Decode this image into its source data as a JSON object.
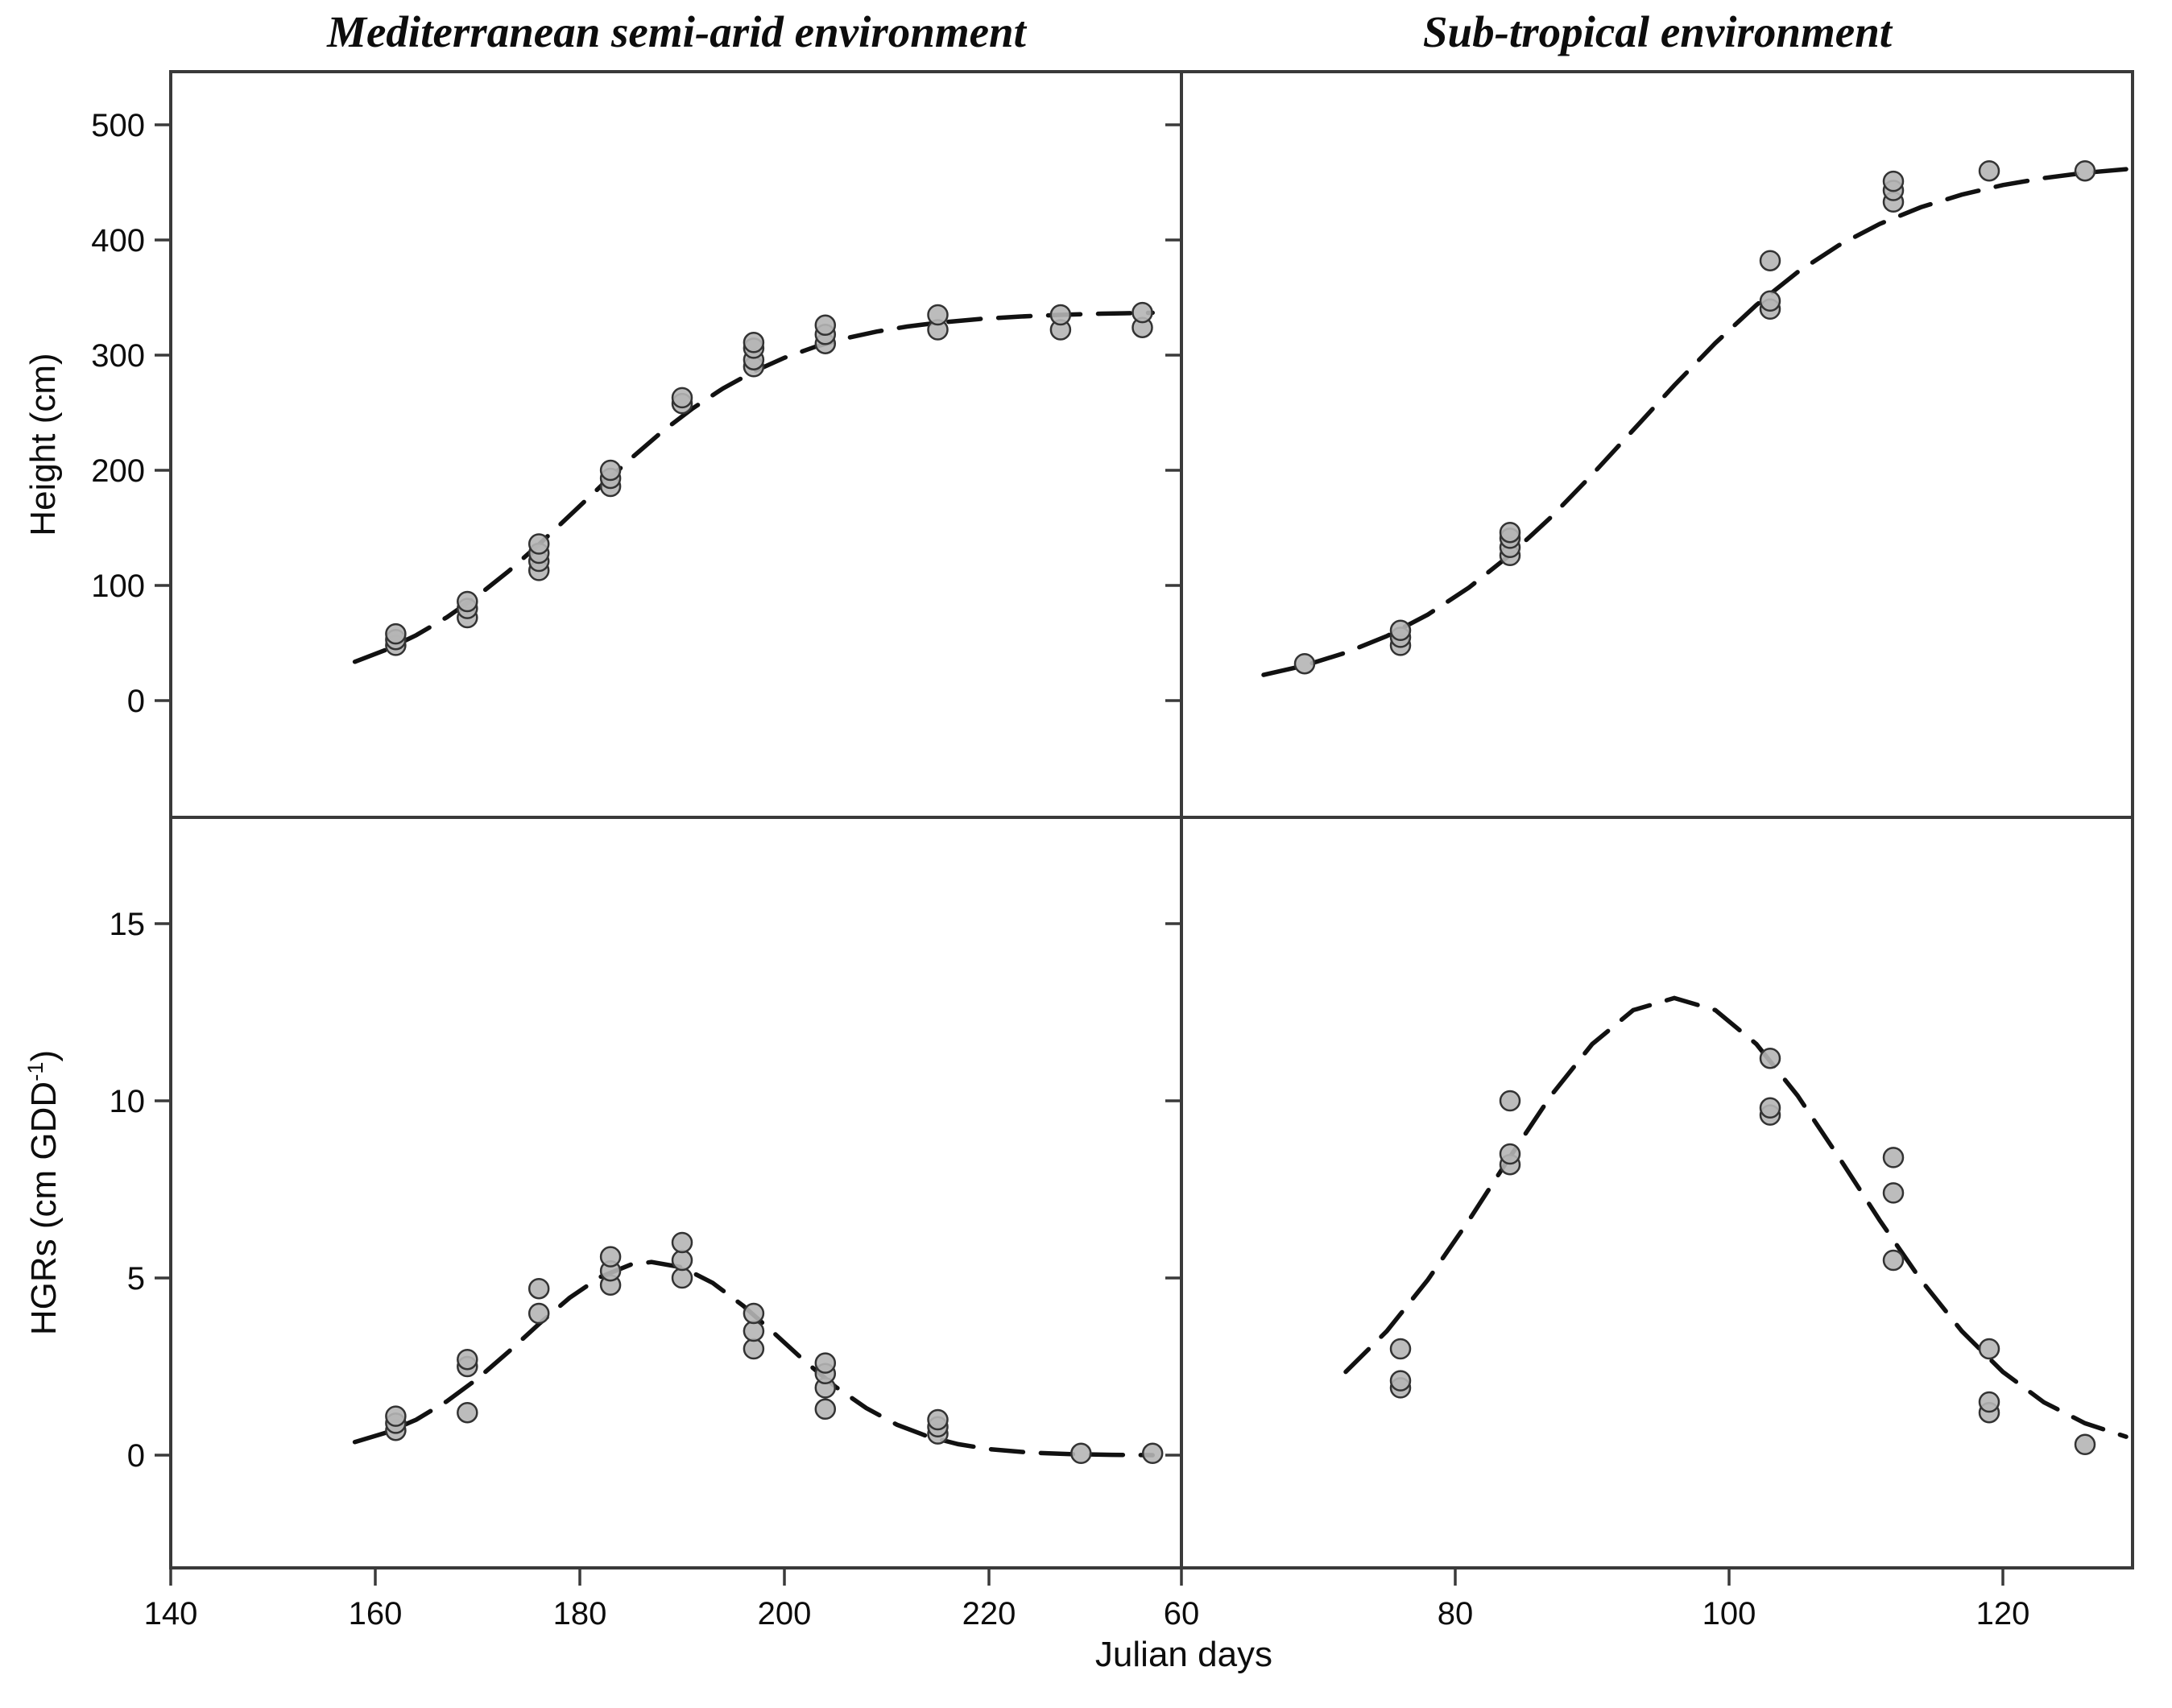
{
  "figure": {
    "left_title": "Mediterranean semi-arid environment",
    "right_title": "Sub-tropical environment",
    "x_axis_label": "Julian days",
    "y_axis_label_top": "Height (cm)",
    "y_axis_label_bottom_main": "HGRs (cm GDD",
    "y_axis_label_bottom_sup": "-1",
    "y_axis_label_bottom_close": ")",
    "point_fill_color": "#b5b5b5",
    "point_stroke_color": "#333333",
    "curve_color": "#111111",
    "axis_color": "#3a3a3a"
  },
  "chart_data": [
    {
      "id": "height-mediterranean",
      "type": "scatter",
      "row": "top",
      "col": "left",
      "title": "Mediterranean semi-arid environment",
      "xlabel": "Julian days",
      "ylabel": "Height (cm)",
      "xlim": [
        140,
        238.8
      ],
      "ylim": [
        -101,
        546
      ],
      "x_ticks": [
        140,
        160,
        180,
        200,
        220
      ],
      "y_ticks": [
        0,
        100,
        200,
        300,
        400,
        500
      ],
      "show_y_tick_labels": true,
      "legend": "none",
      "grid": false,
      "curve_style": "dashed",
      "points": [
        [
          162,
          48
        ],
        [
          162,
          53
        ],
        [
          162,
          58
        ],
        [
          169,
          72
        ],
        [
          169,
          80
        ],
        [
          169,
          86
        ],
        [
          176,
          113
        ],
        [
          176,
          121
        ],
        [
          176,
          128
        ],
        [
          176,
          136
        ],
        [
          183,
          186
        ],
        [
          183,
          193
        ],
        [
          183,
          200
        ],
        [
          190,
          258
        ],
        [
          190,
          263
        ],
        [
          197,
          290
        ],
        [
          197,
          296
        ],
        [
          197,
          306
        ],
        [
          197,
          311
        ],
        [
          204,
          310
        ],
        [
          204,
          318
        ],
        [
          204,
          326
        ],
        [
          215,
          322
        ],
        [
          215,
          335
        ],
        [
          227,
          322
        ],
        [
          227,
          335
        ],
        [
          235,
          324
        ],
        [
          235,
          337
        ]
      ],
      "curve": [
        [
          158,
          33.7
        ],
        [
          161,
          43.9
        ],
        [
          164,
          56.8
        ],
        [
          167,
          72.4
        ],
        [
          170,
          90.9
        ],
        [
          173,
          112.1
        ],
        [
          176,
          135.6
        ],
        [
          179,
          160.6
        ],
        [
          182,
          185.8
        ],
        [
          185,
          210.3
        ],
        [
          188,
          233.2
        ],
        [
          191,
          253.6
        ],
        [
          194,
          271.1
        ],
        [
          197,
          285.7
        ],
        [
          200,
          297.7
        ],
        [
          203,
          307.2
        ],
        [
          206,
          314.6
        ],
        [
          209,
          320.4
        ],
        [
          212,
          324.8
        ],
        [
          215,
          328.1
        ],
        [
          219,
          331.3
        ],
        [
          223,
          333.5
        ],
        [
          227,
          335.0
        ],
        [
          231,
          336.0
        ],
        [
          236,
          336.8
        ]
      ]
    },
    {
      "id": "height-subtropical",
      "type": "scatter",
      "row": "top",
      "col": "right",
      "title": "Sub-tropical environment",
      "xlabel": "Julian days",
      "ylabel": "Height (cm)",
      "xlim": [
        60,
        129.5
      ],
      "ylim": [
        -101,
        546
      ],
      "x_ticks": [
        60,
        80,
        100,
        120
      ],
      "y_ticks": [
        0,
        100,
        200,
        300,
        400,
        500
      ],
      "show_y_tick_labels": false,
      "legend": "none",
      "grid": false,
      "curve_style": "dashed",
      "points": [
        [
          69,
          32
        ],
        [
          76,
          48
        ],
        [
          76,
          55
        ],
        [
          76,
          61
        ],
        [
          84,
          126
        ],
        [
          84,
          133
        ],
        [
          84,
          141
        ],
        [
          84,
          146
        ],
        [
          103,
          340
        ],
        [
          103,
          347
        ],
        [
          103,
          382
        ],
        [
          112,
          433
        ],
        [
          112,
          443
        ],
        [
          112,
          451
        ],
        [
          119,
          460
        ],
        [
          126,
          460
        ]
      ],
      "curve": [
        [
          66,
          22.3
        ],
        [
          69,
          30.5
        ],
        [
          72,
          41.6
        ],
        [
          75,
          56.0
        ],
        [
          78,
          74.7
        ],
        [
          81,
          98.1
        ],
        [
          84,
          126.4
        ],
        [
          87,
          159.4
        ],
        [
          90,
          196.2
        ],
        [
          93,
          235.0
        ],
        [
          96,
          273.8
        ],
        [
          99,
          310.5
        ],
        [
          102,
          343.6
        ],
        [
          105,
          372.0
        ],
        [
          108,
          395.3
        ],
        [
          111,
          413.9
        ],
        [
          114,
          428.4
        ],
        [
          117,
          439.4
        ],
        [
          120,
          447.7
        ],
        [
          123,
          453.8
        ],
        [
          126,
          458.3
        ],
        [
          129,
          461.5
        ]
      ]
    },
    {
      "id": "hgr-mediterranean",
      "type": "scatter",
      "row": "bottom",
      "col": "left",
      "title": "Mediterranean semi-arid environment",
      "xlabel": "Julian days",
      "ylabel": "HGRs (cm GDD-1)",
      "xlim": [
        140,
        238.8
      ],
      "ylim": [
        -3.2,
        18
      ],
      "x_ticks": [
        140,
        160,
        180,
        200,
        220
      ],
      "y_ticks": [
        0,
        5,
        10,
        15
      ],
      "show_y_tick_labels": true,
      "legend": "none",
      "grid": false,
      "curve_style": "dashed",
      "points": [
        [
          162,
          0.7
        ],
        [
          162,
          0.9
        ],
        [
          162,
          1.1
        ],
        [
          169,
          1.2
        ],
        [
          169,
          2.5
        ],
        [
          169,
          2.7
        ],
        [
          176,
          4.0
        ],
        [
          176,
          4.7
        ],
        [
          183,
          4.8
        ],
        [
          183,
          5.2
        ],
        [
          183,
          5.6
        ],
        [
          190,
          5.0
        ],
        [
          190,
          5.5
        ],
        [
          190,
          6.0
        ],
        [
          197,
          3.0
        ],
        [
          197,
          3.5
        ],
        [
          197,
          4.0
        ],
        [
          204,
          1.3
        ],
        [
          204,
          1.9
        ],
        [
          204,
          2.3
        ],
        [
          204,
          2.6
        ],
        [
          215,
          0.6
        ],
        [
          215,
          0.8
        ],
        [
          215,
          1.0
        ],
        [
          229,
          0.05
        ],
        [
          236,
          0.05
        ]
      ],
      "curve": [
        [
          158,
          0.37
        ],
        [
          161,
          0.63
        ],
        [
          164,
          1.0
        ],
        [
          167,
          1.52
        ],
        [
          170,
          2.16
        ],
        [
          173,
          2.91
        ],
        [
          176,
          3.7
        ],
        [
          179,
          4.44
        ],
        [
          182,
          5.03
        ],
        [
          185,
          5.38
        ],
        [
          187,
          5.45
        ],
        [
          190,
          5.3
        ],
        [
          193,
          4.86
        ],
        [
          196,
          4.21
        ],
        [
          199,
          3.44
        ],
        [
          202,
          2.65
        ],
        [
          205,
          1.93
        ],
        [
          208,
          1.33
        ],
        [
          211,
          0.86
        ],
        [
          214,
          0.53
        ],
        [
          217,
          0.31
        ],
        [
          220,
          0.17
        ],
        [
          224,
          0.07
        ],
        [
          228,
          0.03
        ],
        [
          232,
          0.01
        ],
        [
          236,
          0.0
        ]
      ]
    },
    {
      "id": "hgr-subtropical",
      "type": "scatter",
      "row": "bottom",
      "col": "right",
      "title": "Sub-tropical environment",
      "xlabel": "Julian days",
      "ylabel": "HGRs (cm GDD-1)",
      "xlim": [
        60,
        129.5
      ],
      "ylim": [
        -3.2,
        18
      ],
      "x_ticks": [
        60,
        80,
        100,
        120
      ],
      "y_ticks": [
        0,
        5,
        10,
        15
      ],
      "show_y_tick_labels": false,
      "legend": "none",
      "grid": false,
      "curve_style": "dashed",
      "points": [
        [
          76,
          1.9
        ],
        [
          76,
          2.1
        ],
        [
          76,
          3.0
        ],
        [
          84,
          8.2
        ],
        [
          84,
          8.5
        ],
        [
          84,
          10.0
        ],
        [
          103,
          9.6
        ],
        [
          103,
          9.8
        ],
        [
          103,
          11.2
        ],
        [
          112,
          5.5
        ],
        [
          112,
          7.4
        ],
        [
          112,
          8.4
        ],
        [
          119,
          1.2
        ],
        [
          119,
          1.5
        ],
        [
          119,
          3.0
        ],
        [
          126,
          0.3
        ]
      ],
      "curve": [
        [
          72,
          2.35
        ],
        [
          75,
          3.5
        ],
        [
          78,
          4.95
        ],
        [
          81,
          6.63
        ],
        [
          84,
          8.42
        ],
        [
          87,
          10.15
        ],
        [
          90,
          11.6
        ],
        [
          93,
          12.56
        ],
        [
          96,
          12.9
        ],
        [
          99,
          12.56
        ],
        [
          102,
          11.6
        ],
        [
          105,
          10.15
        ],
        [
          108,
          8.42
        ],
        [
          111,
          6.63
        ],
        [
          114,
          4.95
        ],
        [
          117,
          3.5
        ],
        [
          120,
          2.35
        ],
        [
          123,
          1.49
        ],
        [
          126,
          0.9
        ],
        [
          129,
          0.52
        ]
      ]
    }
  ]
}
